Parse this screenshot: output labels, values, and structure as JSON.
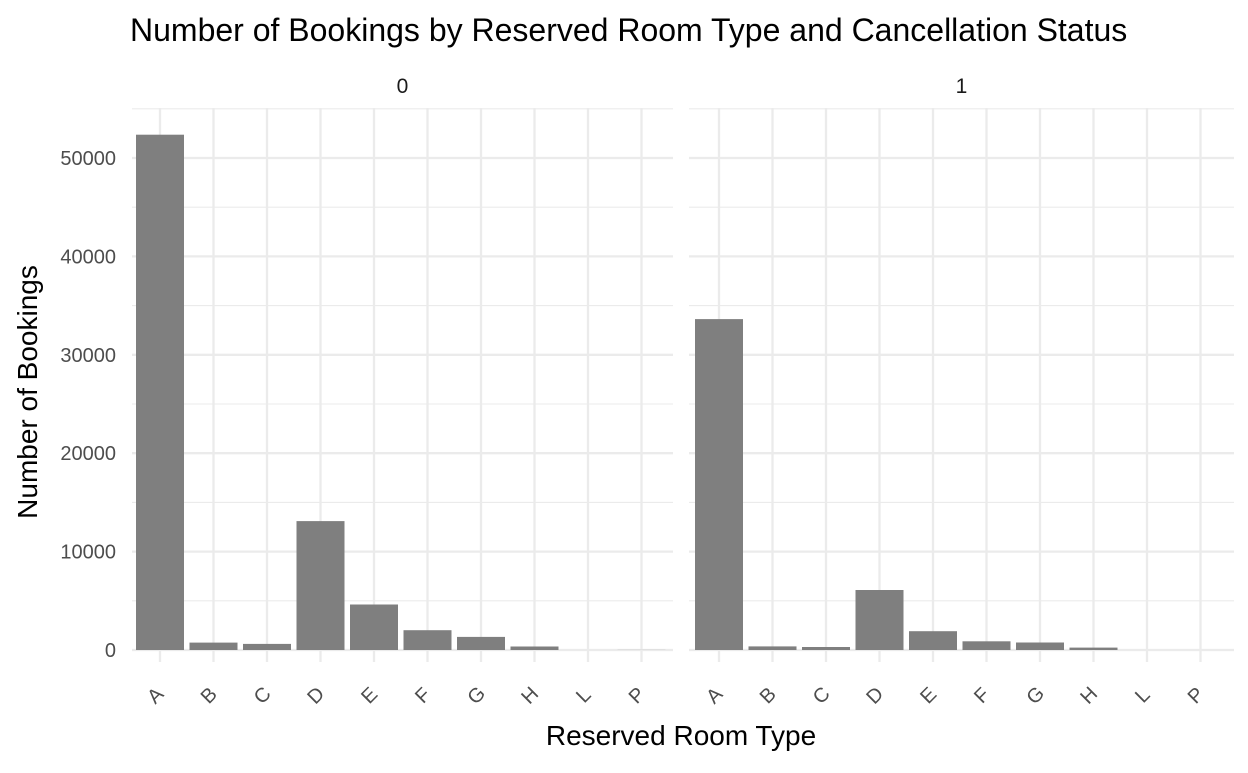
{
  "chart_data": {
    "type": "bar",
    "title": "Number of Bookings by Reserved Room Type and Cancellation Status",
    "xlabel": "Reserved Room Type",
    "ylabel": "Number of Bookings",
    "categories": [
      "A",
      "B",
      "C",
      "D",
      "E",
      "F",
      "G",
      "H",
      "L",
      "P"
    ],
    "ylim": [
      0,
      54000
    ],
    "yticks": [
      0,
      10000,
      20000,
      30000,
      40000,
      50000
    ],
    "ytick_labels": [
      "0",
      "10000",
      "20000",
      "30000",
      "40000",
      "50000"
    ],
    "grid": true,
    "bar_color": "#7f7f7f",
    "panels": [
      {
        "strip_label": "0",
        "values": [
          52364,
          750,
          624,
          13099,
          4621,
          2017,
          1331,
          356,
          4,
          10
        ]
      },
      {
        "strip_label": "1",
        "values": [
          33630,
          368,
          308,
          6102,
          1914,
          880,
          763,
          245,
          2,
          2
        ]
      }
    ]
  }
}
